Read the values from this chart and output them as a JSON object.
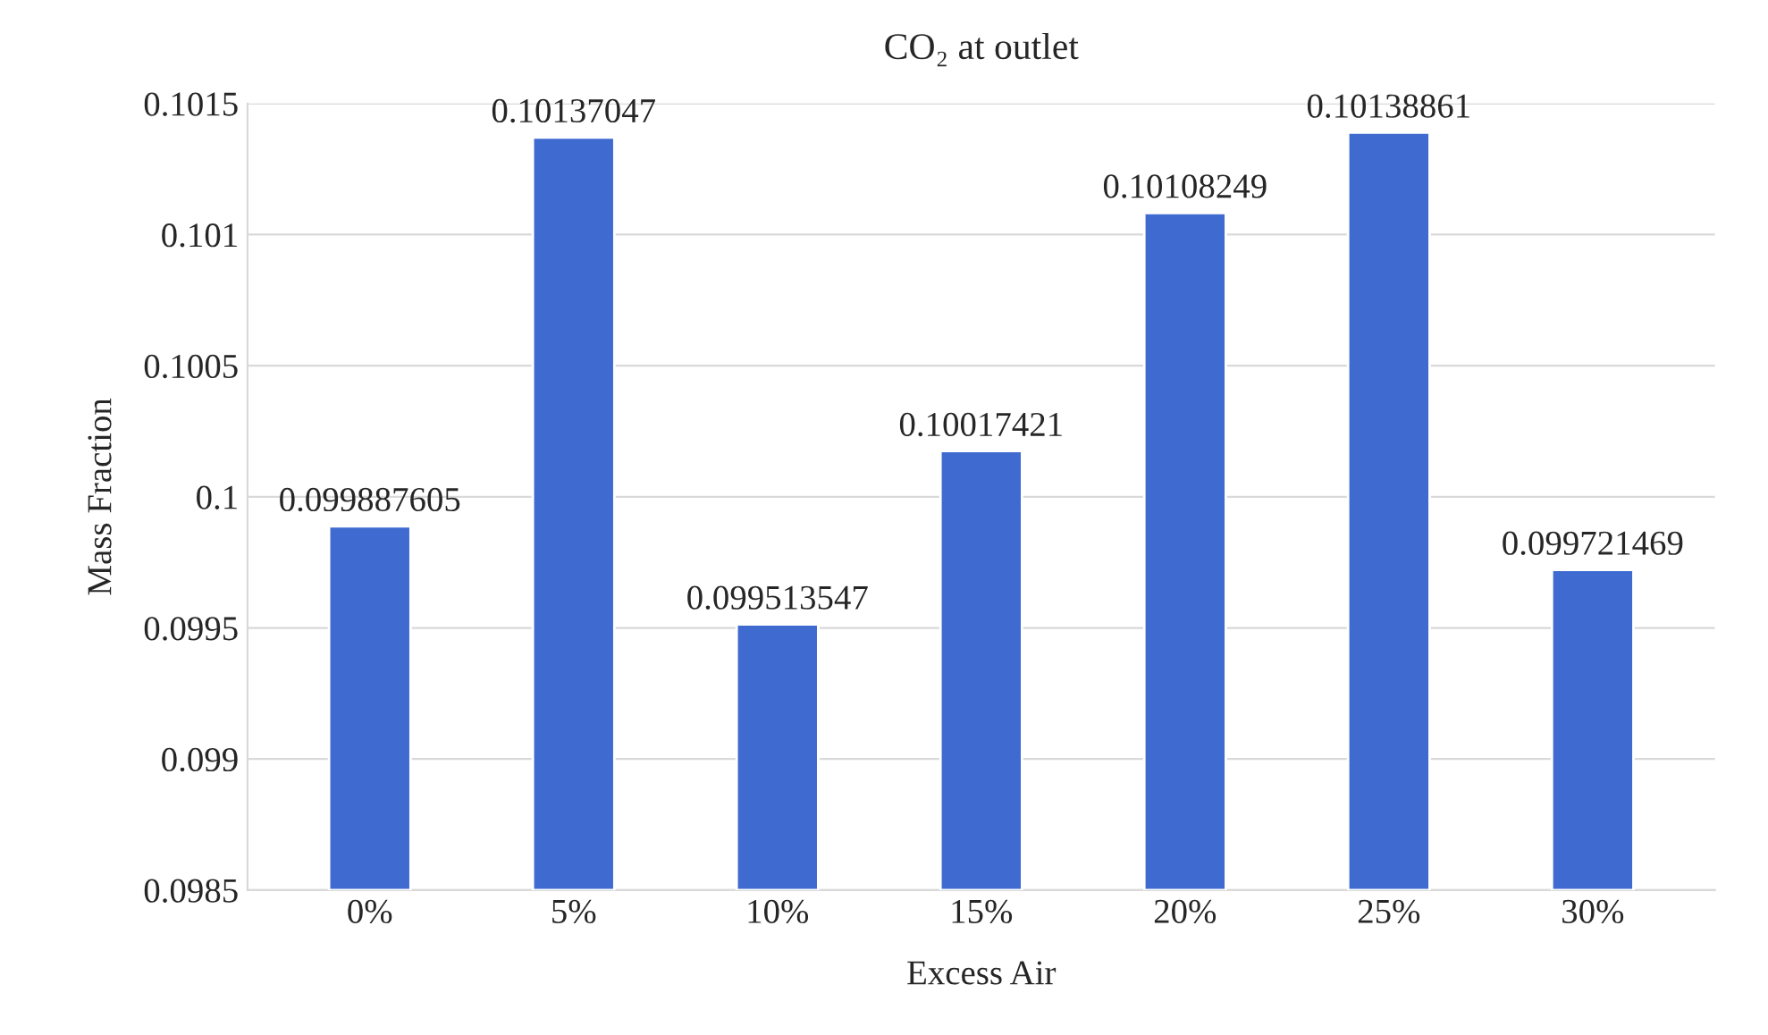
{
  "chart_data": {
    "type": "bar",
    "title": "CO₂ at outlet",
    "xlabel": "Excess Air",
    "ylabel": "Mass Fraction",
    "categories": [
      "0%",
      "5%",
      "10%",
      "15%",
      "20%",
      "25%",
      "30%"
    ],
    "values": [
      0.099887605,
      0.10137047,
      0.099513547,
      0.10017421,
      0.10108249,
      0.10138861,
      0.099721469
    ],
    "color": "#3f6bd0",
    "ylim": [
      0.0985,
      0.1015
    ],
    "yticks": [
      0.0985,
      0.099,
      0.0995,
      0.1,
      0.1005,
      0.101,
      0.1015
    ],
    "grid": "y",
    "data_labels": true
  }
}
